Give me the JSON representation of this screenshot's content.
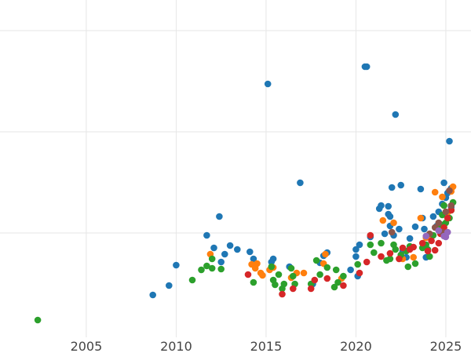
{
  "chart_data": {
    "type": "scatter",
    "title": "",
    "xlabel": "",
    "ylabel": "",
    "xlim": [
      2000.2,
      2026.4
    ],
    "ylim": [
      0,
      450
    ],
    "y_log_scale": false,
    "grid": "y-only",
    "x_ticks": [
      2005,
      2010,
      2015,
      2020,
      2025
    ],
    "x_tick_labels": [
      "2005",
      "2010",
      "2015",
      "2020",
      "2025"
    ],
    "y_ticks": [
      39,
      168,
      297
    ],
    "y_tick_labels": [
      "",
      "",
      ""
    ],
    "series": [
      {
        "color": "#1f77b4",
        "points": [
          [
            2008.7,
            376
          ],
          [
            2009.6,
            364
          ],
          [
            2010.0,
            338
          ],
          [
            2011.7,
            300
          ],
          [
            2012.1,
            316
          ],
          [
            2012.4,
            276
          ],
          [
            2012.5,
            334
          ],
          [
            2012.7,
            324
          ],
          [
            2013.0,
            313
          ],
          [
            2013.4,
            318
          ],
          [
            2014.1,
            321
          ],
          [
            2014.3,
            330
          ],
          [
            2015.1,
            107
          ],
          [
            2015.3,
            334
          ],
          [
            2015.4,
            330
          ],
          [
            2016.3,
            340
          ],
          [
            2016.9,
            233
          ],
          [
            2017.6,
            362
          ],
          [
            2018.0,
            335
          ],
          [
            2018.2,
            326
          ],
          [
            2018.4,
            322
          ],
          [
            2019.7,
            344
          ],
          [
            2020.0,
            318
          ],
          [
            2020.0,
            327
          ],
          [
            2020.1,
            352
          ],
          [
            2020.2,
            312
          ],
          [
            2020.5,
            85
          ],
          [
            2020.6,
            85
          ],
          [
            2020.8,
            302
          ],
          [
            2021.3,
            266
          ],
          [
            2021.4,
            262
          ],
          [
            2021.6,
            298
          ],
          [
            2021.8,
            263
          ],
          [
            2021.8,
            273
          ],
          [
            2021.9,
            276
          ],
          [
            2021.9,
            288
          ],
          [
            2022.0,
            239
          ],
          [
            2022.1,
            300
          ],
          [
            2022.2,
            146
          ],
          [
            2022.4,
            292
          ],
          [
            2022.5,
            236
          ],
          [
            2022.6,
            320
          ],
          [
            2022.8,
            328
          ],
          [
            2023.0,
            304
          ],
          [
            2023.3,
            289
          ],
          [
            2023.6,
            241
          ],
          [
            2023.7,
            278
          ],
          [
            2023.8,
            292
          ],
          [
            2023.9,
            328
          ],
          [
            2024.3,
            276
          ],
          [
            2024.5,
            288
          ],
          [
            2024.6,
            270
          ],
          [
            2024.8,
            260
          ],
          [
            2024.9,
            233
          ],
          [
            2025.0,
            252
          ],
          [
            2025.1,
            246
          ],
          [
            2025.2,
            180
          ],
          [
            2025.3,
            240
          ],
          [
            2025.3,
            264
          ]
        ]
      },
      {
        "color": "#ff7f0e",
        "points": [
          [
            2011.9,
            324
          ],
          [
            2014.2,
            337
          ],
          [
            2014.4,
            342
          ],
          [
            2014.5,
            336
          ],
          [
            2014.7,
            348
          ],
          [
            2014.8,
            351
          ],
          [
            2015.2,
            344
          ],
          [
            2015.4,
            341
          ],
          [
            2016.4,
            354
          ],
          [
            2016.7,
            348
          ],
          [
            2017.1,
            348
          ],
          [
            2018.2,
            336
          ],
          [
            2018.3,
            324
          ],
          [
            2019.2,
            355
          ],
          [
            2021.5,
            281
          ],
          [
            2022.1,
            284
          ],
          [
            2022.6,
            330
          ],
          [
            2023.2,
            328
          ],
          [
            2023.6,
            278
          ],
          [
            2023.9,
            303
          ],
          [
            2024.1,
            300
          ],
          [
            2024.4,
            245
          ],
          [
            2024.6,
            288
          ],
          [
            2024.8,
            251
          ],
          [
            2024.9,
            262
          ],
          [
            2025.1,
            271
          ],
          [
            2025.3,
            244
          ],
          [
            2025.4,
            238
          ]
        ]
      },
      {
        "color": "#2ca02c",
        "points": [
          [
            2002.3,
            408
          ],
          [
            2010.9,
            357
          ],
          [
            2011.4,
            344
          ],
          [
            2011.7,
            339
          ],
          [
            2012.0,
            342
          ],
          [
            2012.0,
            330
          ],
          [
            2012.5,
            343
          ],
          [
            2014.3,
            360
          ],
          [
            2015.3,
            340
          ],
          [
            2015.4,
            357
          ],
          [
            2015.5,
            363
          ],
          [
            2015.7,
            350
          ],
          [
            2015.9,
            368
          ],
          [
            2016.0,
            362
          ],
          [
            2016.4,
            342
          ],
          [
            2016.5,
            352
          ],
          [
            2016.6,
            362
          ],
          [
            2017.5,
            362
          ],
          [
            2017.8,
            332
          ],
          [
            2018.0,
            350
          ],
          [
            2018.4,
            341
          ],
          [
            2018.8,
            366
          ],
          [
            2018.9,
            344
          ],
          [
            2019.0,
            360
          ],
          [
            2019.3,
            352
          ],
          [
            2020.1,
            337
          ],
          [
            2020.8,
            312
          ],
          [
            2021.0,
            322
          ],
          [
            2021.4,
            310
          ],
          [
            2021.7,
            332
          ],
          [
            2021.9,
            330
          ],
          [
            2022.1,
            312
          ],
          [
            2022.2,
            318
          ],
          [
            2022.5,
            325
          ],
          [
            2022.8,
            320
          ],
          [
            2022.9,
            340
          ],
          [
            2023.0,
            314
          ],
          [
            2023.3,
            336
          ],
          [
            2023.7,
            316
          ],
          [
            2023.9,
            312
          ],
          [
            2024.0,
            318
          ],
          [
            2024.1,
            327
          ],
          [
            2024.3,
            300
          ],
          [
            2024.7,
            286
          ],
          [
            2024.8,
            274
          ],
          [
            2024.9,
            262
          ],
          [
            2025.0,
            284
          ],
          [
            2025.2,
            278
          ],
          [
            2025.3,
            268
          ],
          [
            2025.4,
            258
          ]
        ]
      },
      {
        "color": "#d62728",
        "points": [
          [
            2014.0,
            350
          ],
          [
            2015.9,
            375
          ],
          [
            2016.5,
            368
          ],
          [
            2017.5,
            368
          ],
          [
            2017.7,
            357
          ],
          [
            2018.4,
            355
          ],
          [
            2019.3,
            364
          ],
          [
            2020.2,
            348
          ],
          [
            2020.6,
            334
          ],
          [
            2020.8,
            300
          ],
          [
            2021.4,
            327
          ],
          [
            2021.9,
            323
          ],
          [
            2022.4,
            330
          ],
          [
            2022.6,
            316
          ],
          [
            2023.0,
            318
          ],
          [
            2023.2,
            315
          ],
          [
            2023.7,
            310
          ],
          [
            2024.0,
            320
          ],
          [
            2024.2,
            307
          ],
          [
            2024.4,
            319
          ],
          [
            2024.6,
            310
          ],
          [
            2024.7,
            298
          ],
          [
            2024.9,
            290
          ],
          [
            2025.1,
            278
          ],
          [
            2025.3,
            268
          ]
        ]
      },
      {
        "color": "#8c564b",
        "points": [
          [
            2022.0,
            296
          ],
          [
            2024.1,
            298
          ],
          [
            2024.4,
            290
          ],
          [
            2024.6,
            284
          ],
          [
            2024.8,
            296
          ],
          [
            2025.0,
            270
          ],
          [
            2025.2,
            243
          ],
          [
            2025.3,
            262
          ]
        ]
      },
      {
        "color": "#9467bd",
        "points": [
          [
            2023.9,
            301
          ],
          [
            2024.6,
            294
          ],
          [
            2024.9,
            301
          ],
          [
            2025.0,
            302
          ],
          [
            2025.1,
            296
          ]
        ]
      }
    ]
  }
}
